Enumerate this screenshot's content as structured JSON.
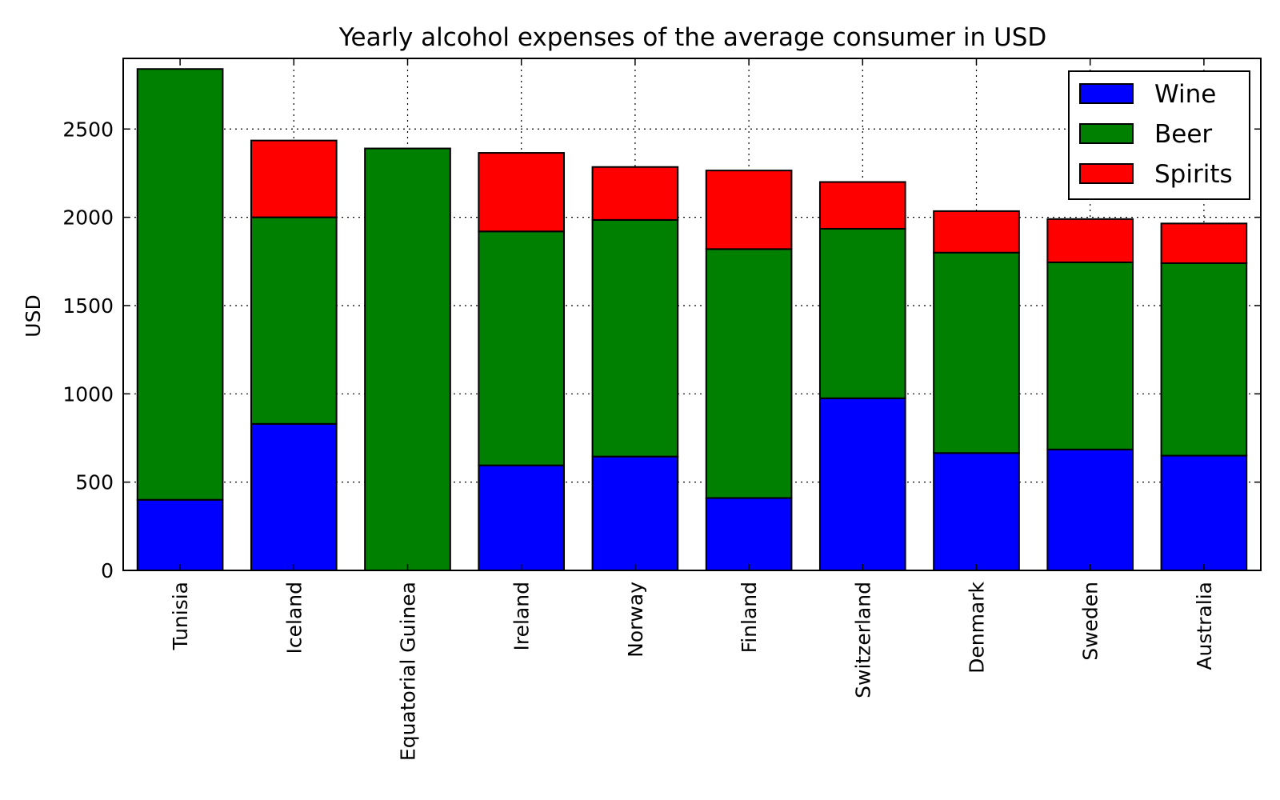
{
  "chart_data": {
    "type": "bar",
    "stacked": true,
    "title": "Yearly alcohol expenses of the average consumer in USD",
    "xlabel": "",
    "ylabel": "USD",
    "ylim": [
      0,
      2900
    ],
    "yticks": [
      0,
      500,
      1000,
      1500,
      2000,
      2500
    ],
    "grid": true,
    "legend_position": "top-right",
    "categories": [
      "Tunisia",
      "Iceland",
      "Equatorial Guinea",
      "Ireland",
      "Norway",
      "Finland",
      "Switzerland",
      "Denmark",
      "Sweden",
      "Australia"
    ],
    "series": [
      {
        "name": "Wine",
        "color": "#0000ff",
        "values": [
          400,
          830,
          0,
          595,
          645,
          410,
          975,
          665,
          685,
          650
        ]
      },
      {
        "name": "Beer",
        "color": "#008000",
        "values": [
          2440,
          1170,
          2390,
          1325,
          1340,
          1410,
          960,
          1135,
          1060,
          1090
        ]
      },
      {
        "name": "Spirits",
        "color": "#ff0000",
        "values": [
          0,
          435,
          0,
          445,
          300,
          445,
          265,
          235,
          245,
          225
        ]
      }
    ]
  }
}
